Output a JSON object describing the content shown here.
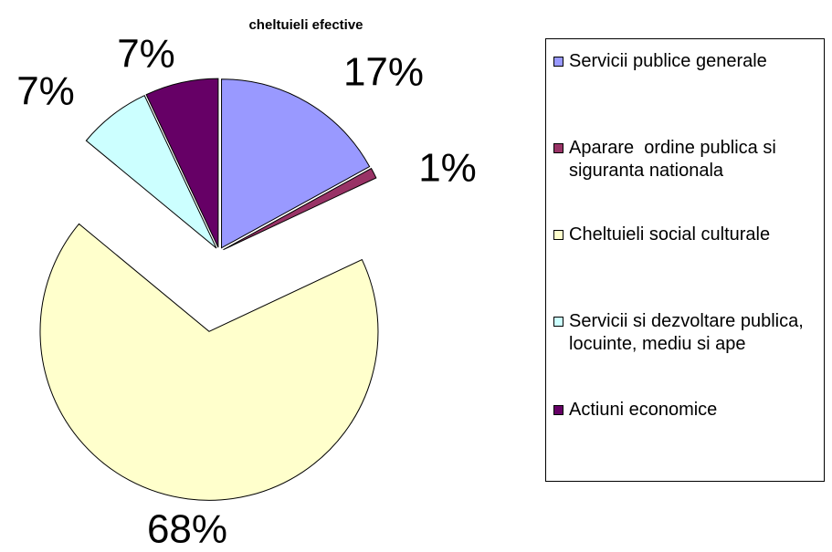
{
  "chart_data": {
    "type": "pie",
    "title": "cheltuieli efective",
    "categories": [
      "Servicii publice generale",
      "Aparare  ordine publica si siguranta nationala",
      "Cheltuieli social culturale",
      "Servicii si dezvoltare publica, locuinte, mediu si ape",
      "Actiuni economice"
    ],
    "values": [
      17,
      1,
      68,
      7,
      7
    ],
    "value_labels": [
      "17%",
      "1%",
      "68%",
      "7%",
      "7%"
    ],
    "colors": [
      "#9999ff",
      "#993366",
      "#ffffcc",
      "#ccffff",
      "#660066"
    ],
    "legend": "right"
  }
}
